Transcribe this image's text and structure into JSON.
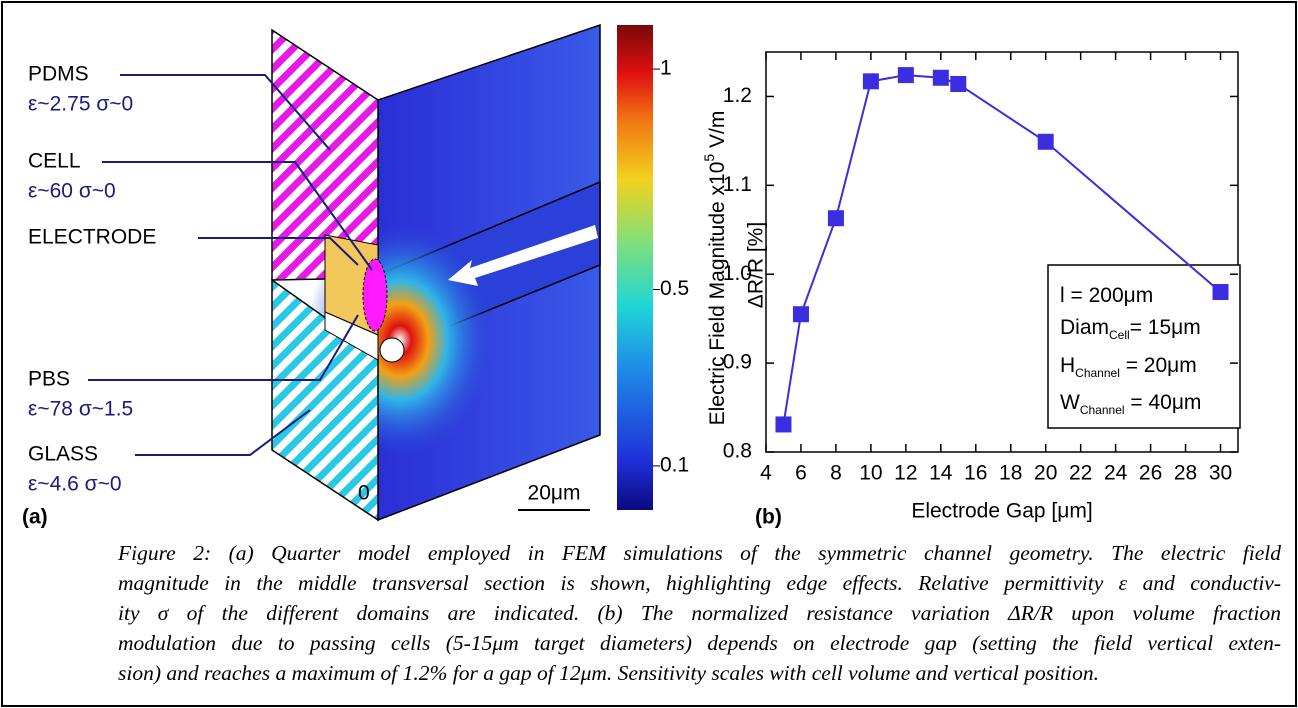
{
  "panel_a": {
    "tag": "(a)",
    "labels": [
      {
        "name": "PDMS",
        "props": "ε~2.75 σ~0"
      },
      {
        "name": "CELL",
        "props": "ε~60 σ~0"
      },
      {
        "name": "ELECTRODE"
      },
      {
        "name": "PBS",
        "props": "ε~78 σ~1.5"
      },
      {
        "name": "GLASS",
        "props": "ε~4.6 σ~0"
      }
    ],
    "origin": "0",
    "scale_bar": "20μm",
    "colorbar": {
      "label": "Electric Field Magnitude x10",
      "label_sup": "5",
      "label_unit": " V/m",
      "clim": [
        0,
        1.1
      ],
      "ticks": [
        1,
        0.5,
        0.1
      ]
    }
  },
  "chart_data": {
    "type": "line",
    "tag": "(b)",
    "x_label": "Electrode Gap [μm]",
    "y_label": "ΔR/R [%]",
    "x": [
      5,
      6,
      8,
      10,
      12,
      14,
      15,
      20,
      30
    ],
    "values": [
      0.831,
      0.955,
      1.063,
      1.217,
      1.224,
      1.221,
      1.214,
      1.149,
      0.98
    ],
    "color": "#3a2ee0",
    "xlim": [
      4,
      31
    ],
    "ylim": [
      0.8,
      1.25
    ],
    "xticks": [
      4,
      6,
      8,
      10,
      12,
      14,
      16,
      18,
      20,
      22,
      24,
      26,
      28,
      30
    ],
    "yticks": [
      0.8,
      0.9,
      {
        "value": 1,
        "label": "1.0"
      },
      1.1,
      1.2
    ],
    "annotations": [
      {
        "main": "l  = 200μm"
      },
      {
        "main": "Diam",
        "sub": "Cell",
        "rest": "= 15μm"
      },
      {
        "main": "H",
        "sub": "Channel",
        "rest": " = 20μm"
      },
      {
        "main": "W",
        "sub": "Channel",
        "rest": " = 40μm"
      }
    ]
  },
  "caption": [
    "Figure 2:  (a) Quarter model employed in FEM simulations of the symmetric channel geometry. The electric field",
    "magnitude in the middle transversal section is shown, highlighting edge effects.  Relative permittivity ε and conductiv-",
    "ity σ of the different domains are indicated.  (b) The normalized resistance variation ΔR/R upon volume fraction",
    "modulation due to passing cells (5-15μm target diameters) depends on electrode gap (setting the field vertical exten-",
    "sion) and reaches a maximum of 1.2% for a gap of 12μm.  Sensitivity scales with cell volume and vertical position."
  ]
}
